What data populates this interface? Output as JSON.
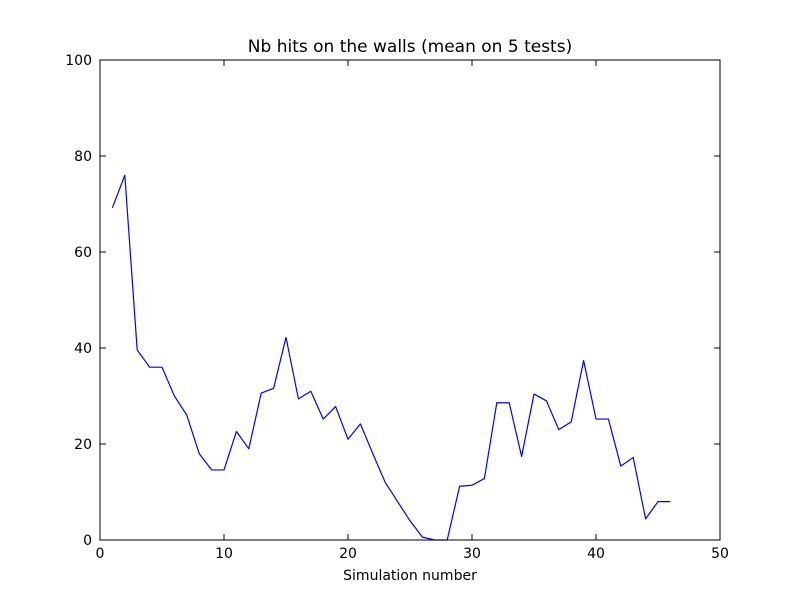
{
  "chart_data": {
    "type": "line",
    "title": "Nb hits on the walls (mean on 5 tests)",
    "xlabel": "Simulation number",
    "ylabel": "",
    "xlim": [
      0,
      50
    ],
    "ylim": [
      0,
      100
    ],
    "xticks": [
      "0",
      "10",
      "20",
      "30",
      "40",
      "50"
    ],
    "yticks": [
      "0",
      "20",
      "40",
      "60",
      "80",
      "100"
    ],
    "grid": false,
    "series": [
      {
        "color": "#0000ff",
        "x": [
          1,
          2,
          3,
          4,
          5,
          6,
          7,
          8,
          9,
          10,
          11,
          12,
          13,
          14,
          15,
          16,
          17,
          18,
          19,
          20,
          21,
          22,
          23,
          24,
          25,
          26,
          27,
          28,
          29,
          30,
          31,
          32,
          33,
          34,
          35,
          36,
          37,
          38,
          39,
          40,
          41,
          42,
          43,
          44,
          45,
          46
        ],
        "y": [
          69.2,
          76.0,
          39.6,
          36.0,
          36.0,
          30.0,
          26.0,
          18.0,
          14.6,
          14.6,
          22.6,
          19.0,
          30.6,
          31.6,
          42.2,
          29.4,
          31.0,
          25.2,
          27.8,
          21.0,
          24.2,
          18.0,
          12.0,
          8.0,
          4.0,
          0.6,
          0.0,
          0.0,
          11.2,
          11.4,
          12.8,
          28.6,
          28.6,
          17.4,
          30.4,
          29.0,
          23.0,
          24.6,
          37.4,
          25.2,
          25.2,
          15.4,
          17.2,
          4.4,
          8.0,
          8.0
        ]
      }
    ]
  }
}
